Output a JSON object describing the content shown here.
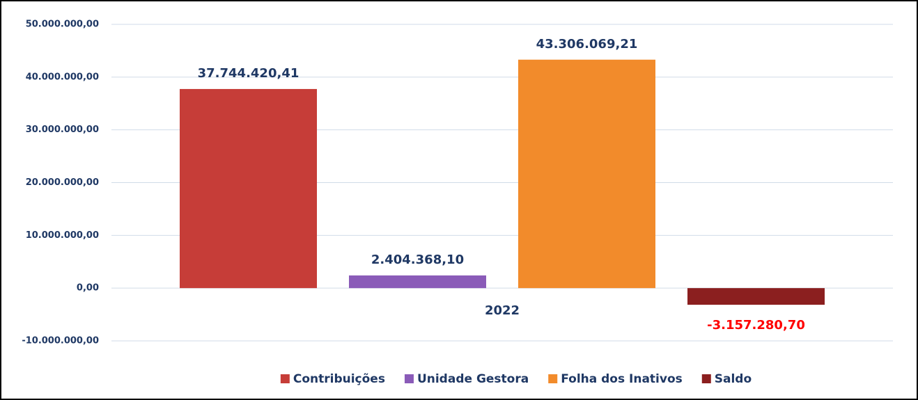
{
  "chart_data": {
    "type": "bar",
    "categories": [
      "2022"
    ],
    "series": [
      {
        "name": "Contribuições",
        "color": "#c63d38",
        "label_color": "#1f3864",
        "values": [
          37744420.41
        ],
        "value_labels": [
          "37.744.420,41"
        ]
      },
      {
        "name": "Unidade Gestora",
        "color": "#8a5bb8",
        "label_color": "#1f3864",
        "values": [
          2404368.1
        ],
        "value_labels": [
          "2.404.368,10"
        ]
      },
      {
        "name": "Folha dos Inativos",
        "color": "#f28b2b",
        "label_color": "#1f3864",
        "values": [
          43306069.21
        ],
        "value_labels": [
          "43.306.069,21"
        ]
      },
      {
        "name": "Saldo",
        "color": "#8b1f1f",
        "label_color": "#ff0000",
        "values": [
          -3157280.7
        ],
        "value_labels": [
          "-3.157.280,70"
        ]
      }
    ],
    "ylim": [
      -10000000,
      50000000
    ],
    "yticks": [
      {
        "value": -10000000,
        "label": "-10.000.000,00"
      },
      {
        "value": 0,
        "label": "0,00"
      },
      {
        "value": 10000000,
        "label": "10.000.000,00"
      },
      {
        "value": 20000000,
        "label": "20.000.000,00"
      },
      {
        "value": 30000000,
        "label": "30.000.000,00"
      },
      {
        "value": 40000000,
        "label": "40.000.000,00"
      },
      {
        "value": 50000000,
        "label": "50.000.000,00"
      }
    ],
    "grid": true,
    "legend": "bottom"
  }
}
